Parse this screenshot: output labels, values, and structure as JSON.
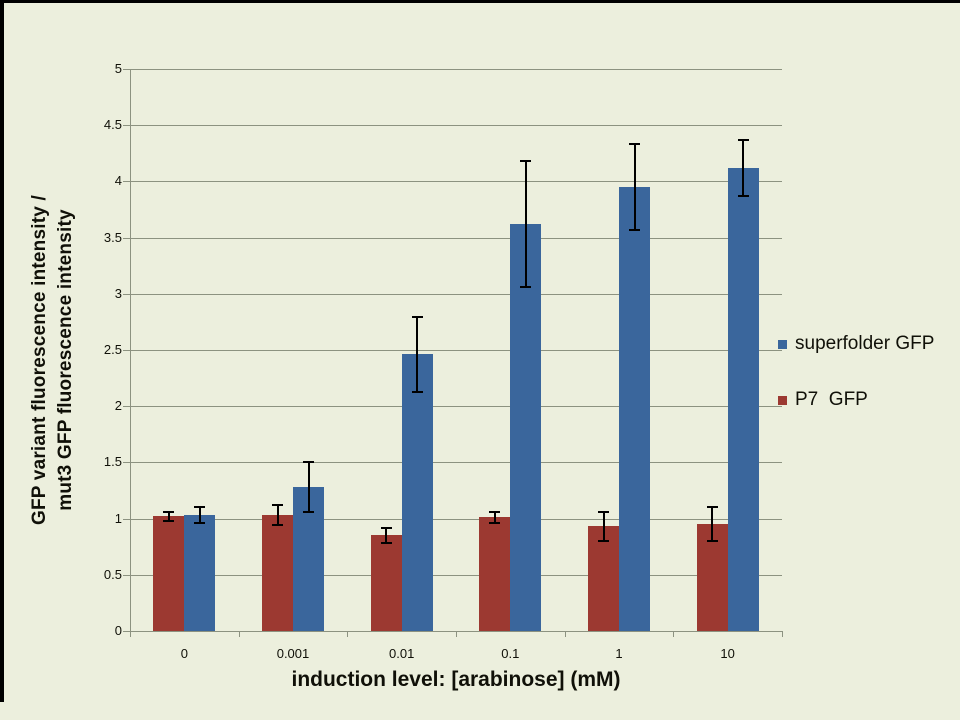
{
  "window": {
    "background_color": "#ECEFDD",
    "border_color": "#000000"
  },
  "chart_data": {
    "type": "bar",
    "title": "",
    "xlabel": "induction level: [arabinose] (mM)",
    "ylabel": "GFP variant fluorescence intensity / mut3 GFP fluorescence intensity",
    "ylabel_lines": [
      "GFP variant fluorescence intensity /",
      "mut3 GFP fluorescence intensity"
    ],
    "categories": [
      "0",
      "0.001",
      "0.01",
      "0.1",
      "1",
      "10"
    ],
    "series": [
      {
        "name": "P7  GFP",
        "color": "#9C3931",
        "values": [
          1.02,
          1.03,
          0.85,
          1.01,
          0.93,
          0.95
        ],
        "error_bars": [
          0.04,
          0.09,
          0.07,
          0.05,
          0.13,
          0.15
        ]
      },
      {
        "name": "superfolder GFP",
        "color": "#3A669C",
        "values": [
          1.03,
          1.28,
          2.46,
          3.62,
          3.95,
          4.12
        ],
        "error_bars": [
          0.07,
          0.22,
          0.33,
          0.56,
          0.38,
          0.25
        ]
      }
    ],
    "legend": [
      {
        "label": "superfolder GFP",
        "color": "#3A669C"
      },
      {
        "label": "P7  GFP",
        "color": "#9C3931"
      }
    ],
    "legend_position": "right",
    "ylim": [
      0,
      5
    ],
    "ytick_step": 0.5,
    "ytick_labels": [
      "0",
      "0.5",
      "1",
      "1.5",
      "2",
      "2.5",
      "3",
      "3.5",
      "4",
      "4.5",
      "5"
    ],
    "grid": true,
    "gridline_color": "#8C9280",
    "error_bar_color": "#000000"
  }
}
